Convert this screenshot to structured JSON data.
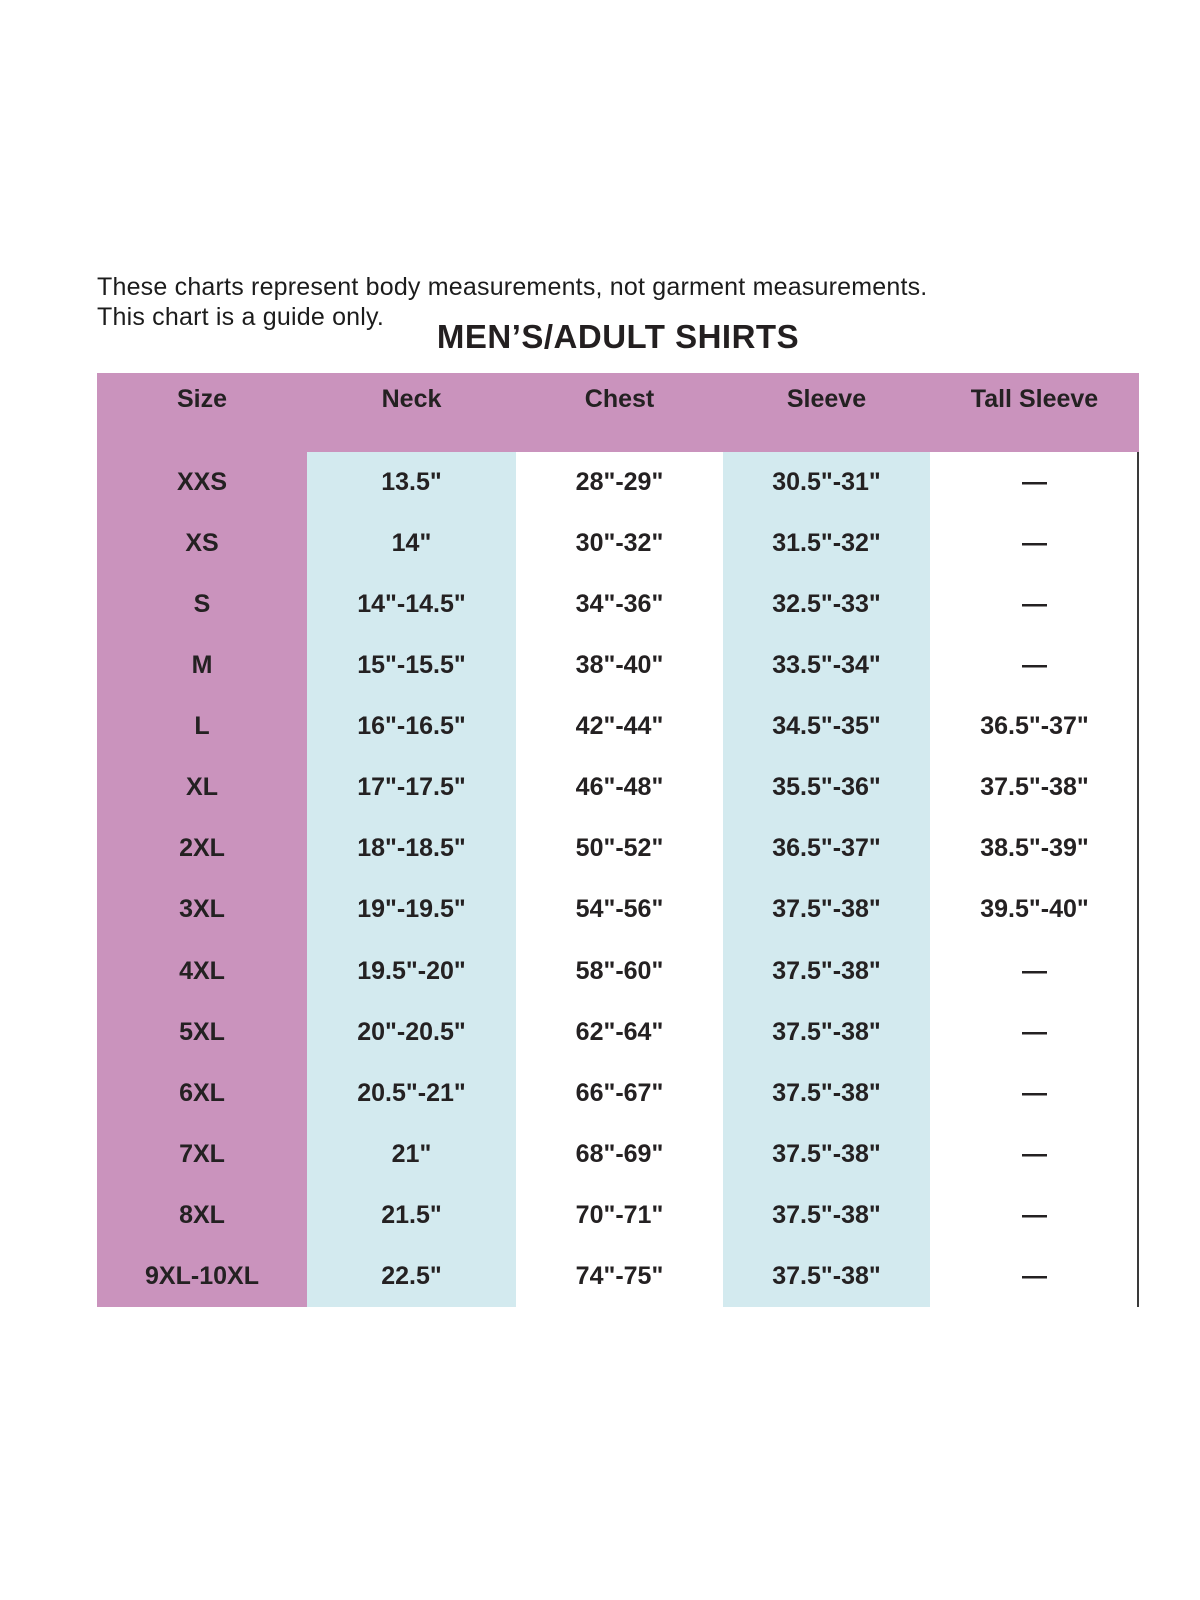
{
  "page": {
    "note_line1": "These charts represent body measurements, not garment measurements.",
    "note_line2": "This chart is a guide only.",
    "title": "MEN’S/ADULT SHIRTS"
  },
  "table": {
    "columns": [
      "Size",
      "Neck",
      "Chest",
      "Sleeve",
      "Tall Sleeve"
    ],
    "rows": [
      {
        "size": "XXS",
        "neck": "13.5\"",
        "chest": "28\"-29\"",
        "sleeve": "30.5\"-31\"",
        "tall_sleeve": "—"
      },
      {
        "size": "XS",
        "neck": "14\"",
        "chest": "30\"-32\"",
        "sleeve": "31.5\"-32\"",
        "tall_sleeve": "—"
      },
      {
        "size": "S",
        "neck": "14\"-14.5\"",
        "chest": "34\"-36\"",
        "sleeve": "32.5\"-33\"",
        "tall_sleeve": "—"
      },
      {
        "size": "M",
        "neck": "15\"-15.5\"",
        "chest": "38\"-40\"",
        "sleeve": "33.5\"-34\"",
        "tall_sleeve": "—"
      },
      {
        "size": "L",
        "neck": "16\"-16.5\"",
        "chest": "42\"-44\"",
        "sleeve": "34.5\"-35\"",
        "tall_sleeve": "36.5\"-37\""
      },
      {
        "size": "XL",
        "neck": "17\"-17.5\"",
        "chest": "46\"-48\"",
        "sleeve": "35.5\"-36\"",
        "tall_sleeve": "37.5\"-38\""
      },
      {
        "size": "2XL",
        "neck": "18\"-18.5\"",
        "chest": "50\"-52\"",
        "sleeve": "36.5\"-37\"",
        "tall_sleeve": "38.5\"-39\""
      },
      {
        "size": "3XL",
        "neck": "19\"-19.5\"",
        "chest": "54\"-56\"",
        "sleeve": "37.5\"-38\"",
        "tall_sleeve": "39.5\"-40\""
      },
      {
        "size": "4XL",
        "neck": "19.5\"-20\"",
        "chest": "58\"-60\"",
        "sleeve": "37.5\"-38\"",
        "tall_sleeve": "—"
      },
      {
        "size": "5XL",
        "neck": "20\"-20.5\"",
        "chest": "62\"-64\"",
        "sleeve": "37.5\"-38\"",
        "tall_sleeve": "—"
      },
      {
        "size": "6XL",
        "neck": "20.5\"-21\"",
        "chest": "66\"-67\"",
        "sleeve": "37.5\"-38\"",
        "tall_sleeve": "—"
      },
      {
        "size": "7XL",
        "neck": "21\"",
        "chest": "68\"-69\"",
        "sleeve": "37.5\"-38\"",
        "tall_sleeve": "—"
      },
      {
        "size": "8XL",
        "neck": "21.5\"",
        "chest": "70\"-71\"",
        "sleeve": "37.5\"-38\"",
        "tall_sleeve": "—"
      },
      {
        "size": "9XL-10XL",
        "neck": "22.5\"",
        "chest": "74\"-75\"",
        "sleeve": "37.5\"-38\"",
        "tall_sleeve": "—"
      }
    ]
  },
  "colors": {
    "header_and_size_column": "#ca93bd",
    "highlight_columns": "#d3eaef",
    "text": "#242122",
    "right_border": "#3a3a3a"
  }
}
